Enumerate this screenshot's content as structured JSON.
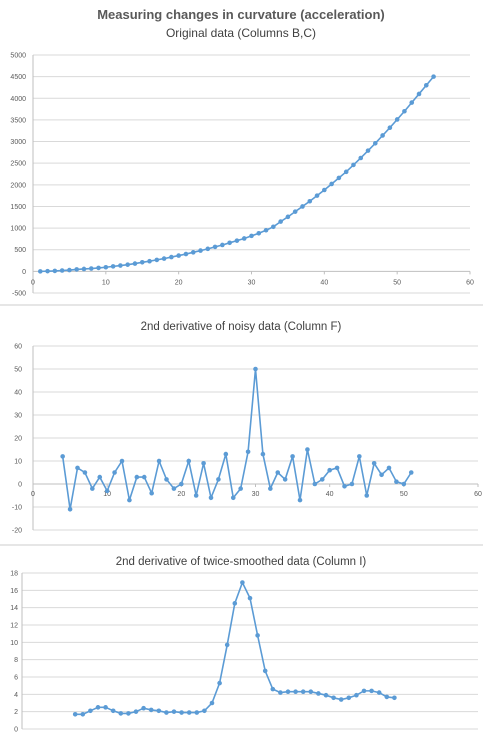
{
  "chart_data": [
    {
      "type": "scatter",
      "title": "Measuring changes in curvature (acceleration)",
      "subtitle": "Original data (Columns B,C)",
      "xlim": [
        0,
        60
      ],
      "ylim": [
        -500,
        5000
      ],
      "xticks": [
        0,
        10,
        20,
        30,
        40,
        50,
        60
      ],
      "yticks": [
        -500,
        0,
        500,
        1000,
        1500,
        2000,
        2500,
        3000,
        3500,
        4000,
        4500,
        5000
      ],
      "grid": true,
      "series": [
        {
          "color": "#5b9bd5",
          "points": [
            [
              1,
              0
            ],
            [
              2,
              5
            ],
            [
              3,
              10
            ],
            [
              4,
              20
            ],
            [
              5,
              30
            ],
            [
              6,
              45
            ],
            [
              7,
              55
            ],
            [
              8,
              65
            ],
            [
              9,
              80
            ],
            [
              10,
              95
            ],
            [
              11,
              115
            ],
            [
              12,
              135
            ],
            [
              13,
              155
            ],
            [
              14,
              180
            ],
            [
              15,
              210
            ],
            [
              16,
              235
            ],
            [
              17,
              265
            ],
            [
              18,
              295
            ],
            [
              19,
              330
            ],
            [
              20,
              365
            ],
            [
              21,
              400
            ],
            [
              22,
              440
            ],
            [
              23,
              480
            ],
            [
              24,
              520
            ],
            [
              25,
              565
            ],
            [
              26,
              610
            ],
            [
              27,
              660
            ],
            [
              28,
              710
            ],
            [
              29,
              760
            ],
            [
              30,
              820
            ],
            [
              31,
              880
            ],
            [
              32,
              950
            ],
            [
              33,
              1030
            ],
            [
              34,
              1150
            ],
            [
              35,
              1260
            ],
            [
              36,
              1380
            ],
            [
              37,
              1500
            ],
            [
              38,
              1620
            ],
            [
              39,
              1750
            ],
            [
              40,
              1880
            ],
            [
              41,
              2020
            ],
            [
              42,
              2160
            ],
            [
              43,
              2300
            ],
            [
              44,
              2460
            ],
            [
              45,
              2620
            ],
            [
              46,
              2790
            ],
            [
              47,
              2960
            ],
            [
              48,
              3140
            ],
            [
              49,
              3320
            ],
            [
              50,
              3510
            ],
            [
              51,
              3700
            ],
            [
              52,
              3900
            ],
            [
              53,
              4100
            ],
            [
              54,
              4300
            ],
            [
              55,
              4500
            ]
          ]
        }
      ]
    },
    {
      "type": "scatter",
      "title": "2nd derivative of noisy data (Column F)",
      "xlim": [
        0,
        60
      ],
      "ylim": [
        -20,
        60
      ],
      "xticks": [
        0,
        10,
        20,
        30,
        40,
        50,
        60
      ],
      "yticks": [
        -20,
        -10,
        0,
        10,
        20,
        30,
        40,
        50,
        60
      ],
      "grid": true,
      "series": [
        {
          "color": "#5b9bd5",
          "points": [
            [
              4,
              12
            ],
            [
              5,
              -11
            ],
            [
              6,
              7
            ],
            [
              7,
              5
            ],
            [
              8,
              -2
            ],
            [
              9,
              3
            ],
            [
              10,
              -3
            ],
            [
              11,
              5
            ],
            [
              12,
              10
            ],
            [
              13,
              -7
            ],
            [
              14,
              3
            ],
            [
              15,
              3
            ],
            [
              16,
              -4
            ],
            [
              17,
              10
            ],
            [
              18,
              2
            ],
            [
              19,
              -2
            ],
            [
              20,
              0
            ],
            [
              21,
              10
            ],
            [
              22,
              -5
            ],
            [
              23,
              9
            ],
            [
              24,
              -6
            ],
            [
              25,
              2
            ],
            [
              26,
              13
            ],
            [
              27,
              -6
            ],
            [
              28,
              -2
            ],
            [
              29,
              14
            ],
            [
              30,
              50
            ],
            [
              31,
              13
            ],
            [
              32,
              -2
            ],
            [
              33,
              5
            ],
            [
              34,
              2
            ],
            [
              35,
              12
            ],
            [
              36,
              -7
            ],
            [
              37,
              15
            ],
            [
              38,
              0
            ],
            [
              39,
              2
            ],
            [
              40,
              6
            ],
            [
              41,
              7
            ],
            [
              42,
              -1
            ],
            [
              43,
              0
            ],
            [
              44,
              12
            ],
            [
              45,
              -5
            ],
            [
              46,
              9
            ],
            [
              47,
              4
            ],
            [
              48,
              7
            ],
            [
              49,
              1
            ],
            [
              50,
              0
            ],
            [
              51,
              5
            ]
          ]
        }
      ]
    },
    {
      "type": "scatter",
      "title": "2nd derivative of twice-smoothed data (Column I)",
      "xlim": [
        0,
        60
      ],
      "ylim": [
        0,
        18
      ],
      "yticks": [
        0,
        2,
        4,
        6,
        8,
        10,
        12,
        14,
        16,
        18
      ],
      "grid": true,
      "series": [
        {
          "color": "#5b9bd5",
          "points": [
            [
              7,
              1.7
            ],
            [
              8,
              1.7
            ],
            [
              9,
              2.1
            ],
            [
              10,
              2.5
            ],
            [
              11,
              2.5
            ],
            [
              12,
              2.1
            ],
            [
              13,
              1.8
            ],
            [
              14,
              1.8
            ],
            [
              15,
              2.0
            ],
            [
              16,
              2.4
            ],
            [
              17,
              2.2
            ],
            [
              18,
              2.1
            ],
            [
              19,
              1.9
            ],
            [
              20,
              2.0
            ],
            [
              21,
              1.9
            ],
            [
              22,
              1.9
            ],
            [
              23,
              1.9
            ],
            [
              24,
              2.1
            ],
            [
              25,
              3.0
            ],
            [
              26,
              5.3
            ],
            [
              27,
              9.7
            ],
            [
              28,
              14.5
            ],
            [
              29,
              16.9
            ],
            [
              30,
              15.1
            ],
            [
              31,
              10.8
            ],
            [
              32,
              6.7
            ],
            [
              33,
              4.6
            ],
            [
              34,
              4.2
            ],
            [
              35,
              4.3
            ],
            [
              36,
              4.3
            ],
            [
              37,
              4.3
            ],
            [
              38,
              4.3
            ],
            [
              39,
              4.1
            ],
            [
              40,
              3.9
            ],
            [
              41,
              3.6
            ],
            [
              42,
              3.4
            ],
            [
              43,
              3.6
            ],
            [
              44,
              3.9
            ],
            [
              45,
              4.4
            ],
            [
              46,
              4.4
            ],
            [
              47,
              4.2
            ],
            [
              48,
              3.7
            ],
            [
              49,
              3.6
            ]
          ]
        }
      ]
    }
  ]
}
